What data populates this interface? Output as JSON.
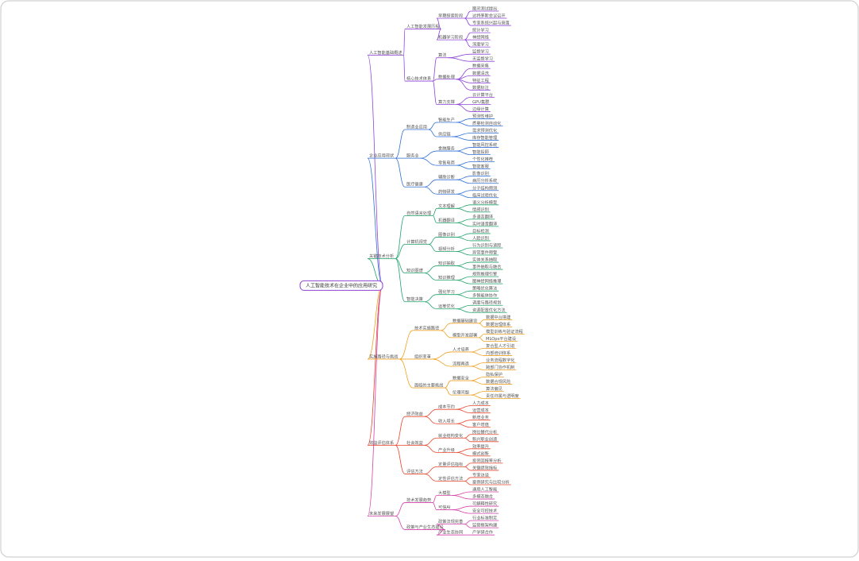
{
  "root": {
    "label": "人工智能技术在企业中的应用研究",
    "children": [
      {
        "label": "人工智能基础概述",
        "children": [
          {
            "label": "人工智能发展历程",
            "children": [
              {
                "label": "早期探索阶段",
                "children": [
                  "图灵测试提出",
                  "达特茅斯会议召开",
                  "专家系统兴起与衰落"
                ]
              },
              {
                "label": "机器学习阶段",
                "children": [
                  "统计学习",
                  "神经网络",
                  "深度学习"
                ]
              }
            ]
          },
          {
            "label": "核心技术体系",
            "children": [
              {
                "label": "算法",
                "children": [
                  "监督学习",
                  "无监督学习"
                ]
              },
              {
                "label": "数据处理",
                "children": [
                  "数据采集",
                  "数据清洗",
                  "特征工程",
                  "数据标注"
                ]
              },
              {
                "label": "算力支撑",
                "children": [
                  "云计算平台",
                  "GPU集群",
                  "边缘计算"
                ]
              }
            ]
          }
        ]
      },
      {
        "label": "企业应用现状",
        "children": [
          {
            "label": "制造业应用",
            "children": [
              {
                "label": "智能生产",
                "children": [
                  "预测性维护",
                  "质量检测自动化"
                ]
              },
              {
                "label": "供应链",
                "children": [
                  "需求预测优化",
                  "库存智能管理"
                ]
              }
            ]
          },
          {
            "label": "服务业",
            "children": [
              {
                "label": "金融服务",
                "children": [
                  "智能风控系统",
                  "智能投顾"
                ]
              },
              {
                "label": "零售电商",
                "children": [
                  "个性化推荐",
                  "智能客服"
                ]
              }
            ]
          },
          {
            "label": "医疗健康",
            "children": [
              {
                "label": "辅助诊断",
                "children": [
                  "影像识别",
                  "病历分析系统"
                ]
              },
              {
                "label": "药物研发",
                "children": [
                  "分子结构预测",
                  "临床试验优化"
                ]
              }
            ]
          }
        ]
      },
      {
        "label": "关键技术分析",
        "children": [
          {
            "label": "自然语言处理",
            "children": [
              {
                "label": "文本理解",
                "children": [
                  "语义分析模型",
                  "情感识别"
                ]
              },
              {
                "label": "机器翻译",
                "children": [
                  "多语言翻译",
                  "实时语音翻译"
                ]
              }
            ]
          },
          {
            "label": "计算机视觉",
            "children": [
              {
                "label": "图像识别",
                "children": [
                  "目标检测",
                  "人脸识别"
                ]
              },
              {
                "label": "视频分析",
                "children": [
                  "行为识别与追踪",
                  "异常事件预警"
                ]
              }
            ]
          },
          {
            "label": "知识图谱",
            "children": [
              {
                "label": "知识抽取",
                "children": [
                  "实体关系抽取",
                  "事件抽取与融合"
                ]
              },
              {
                "label": "知识推理",
                "children": [
                  "规则推理引擎",
                  "图神经网络推理"
                ]
              }
            ]
          },
          {
            "label": "智能决策",
            "children": [
              {
                "label": "强化学习",
                "children": [
                  "策略优化算法",
                  "多智能体协作"
                ]
              },
              {
                "label": "运筹优化",
                "children": [
                  "调度与路径规划",
                  "资源配置优化方法"
                ]
              }
            ]
          }
        ]
      },
      {
        "label": "实施路径与挑战",
        "children": [
          {
            "label": "技术实施路径",
            "children": [
              {
                "label": "数据基础建设",
                "children": [
                  "数据中台搭建",
                  "数据治理体系"
                ]
              },
              {
                "label": "模型开发部署",
                "children": [
                  "模型训练与验证流程",
                  "MLOps平台建设"
                ]
              }
            ]
          },
          {
            "label": "组织变革",
            "children": [
              {
                "label": "人才培养",
                "children": [
                  "复合型人才引进",
                  "内部培训体系"
                ]
              },
              {
                "label": "流程再造",
                "children": [
                  "业务流程数字化",
                  "跨部门协作机制"
                ]
              }
            ]
          },
          {
            "label": "面临的主要挑战",
            "children": [
              {
                "label": "数据安全",
                "children": [
                  "隐私保护",
                  "数据合规风险"
                ]
              },
              {
                "label": "伦理问题",
                "children": [
                  "算法偏见",
                  "责任归属与透明度"
                ]
              }
            ]
          }
        ]
      },
      {
        "label": "效益评估体系",
        "children": [
          {
            "label": "经济效益",
            "children": [
              {
                "label": "成本节约",
                "children": [
                  "人力成本",
                  "运营成本"
                ]
              },
              {
                "label": "收入增长",
                "children": [
                  "新增业务",
                  "客户增值"
                ]
              }
            ]
          },
          {
            "label": "社会效益",
            "children": [
              {
                "label": "就业结构变化",
                "children": [
                  "岗位替代分析",
                  "新兴职业创造"
                ]
              },
              {
                "label": "产业升级",
                "children": [
                  "效率提升",
                  "模式创新"
                ]
              }
            ]
          },
          {
            "label": "评估方法",
            "children": [
              {
                "label": "定量评估指标",
                "children": [
                  "投资回报率分析",
                  "关键绩效指标"
                ]
              },
              {
                "label": "定性评估方法",
                "children": [
                  "专家访谈",
                  "案例研究与比较分析"
                ]
              }
            ]
          }
        ]
      },
      {
        "label": "未来发展展望",
        "children": [
          {
            "label": "技术发展趋势",
            "children": [
              {
                "label": "大模型",
                "children": [
                  "通用人工智能",
                  "多模态融合"
                ]
              },
              {
                "label": "可信AI",
                "children": [
                  "可解释性研究",
                  "安全可控技术"
                ]
              }
            ]
          },
          {
            "label": "政策与产业生态建设",
            "children": [
              {
                "label": "政策法规完善",
                "children": [
                  "行业标准制定",
                  "监管框架构建"
                ]
              },
              {
                "label": "产业生态协同",
                "children": [
                  "产学研合作"
                ]
              }
            ]
          }
        ]
      }
    ]
  }
}
